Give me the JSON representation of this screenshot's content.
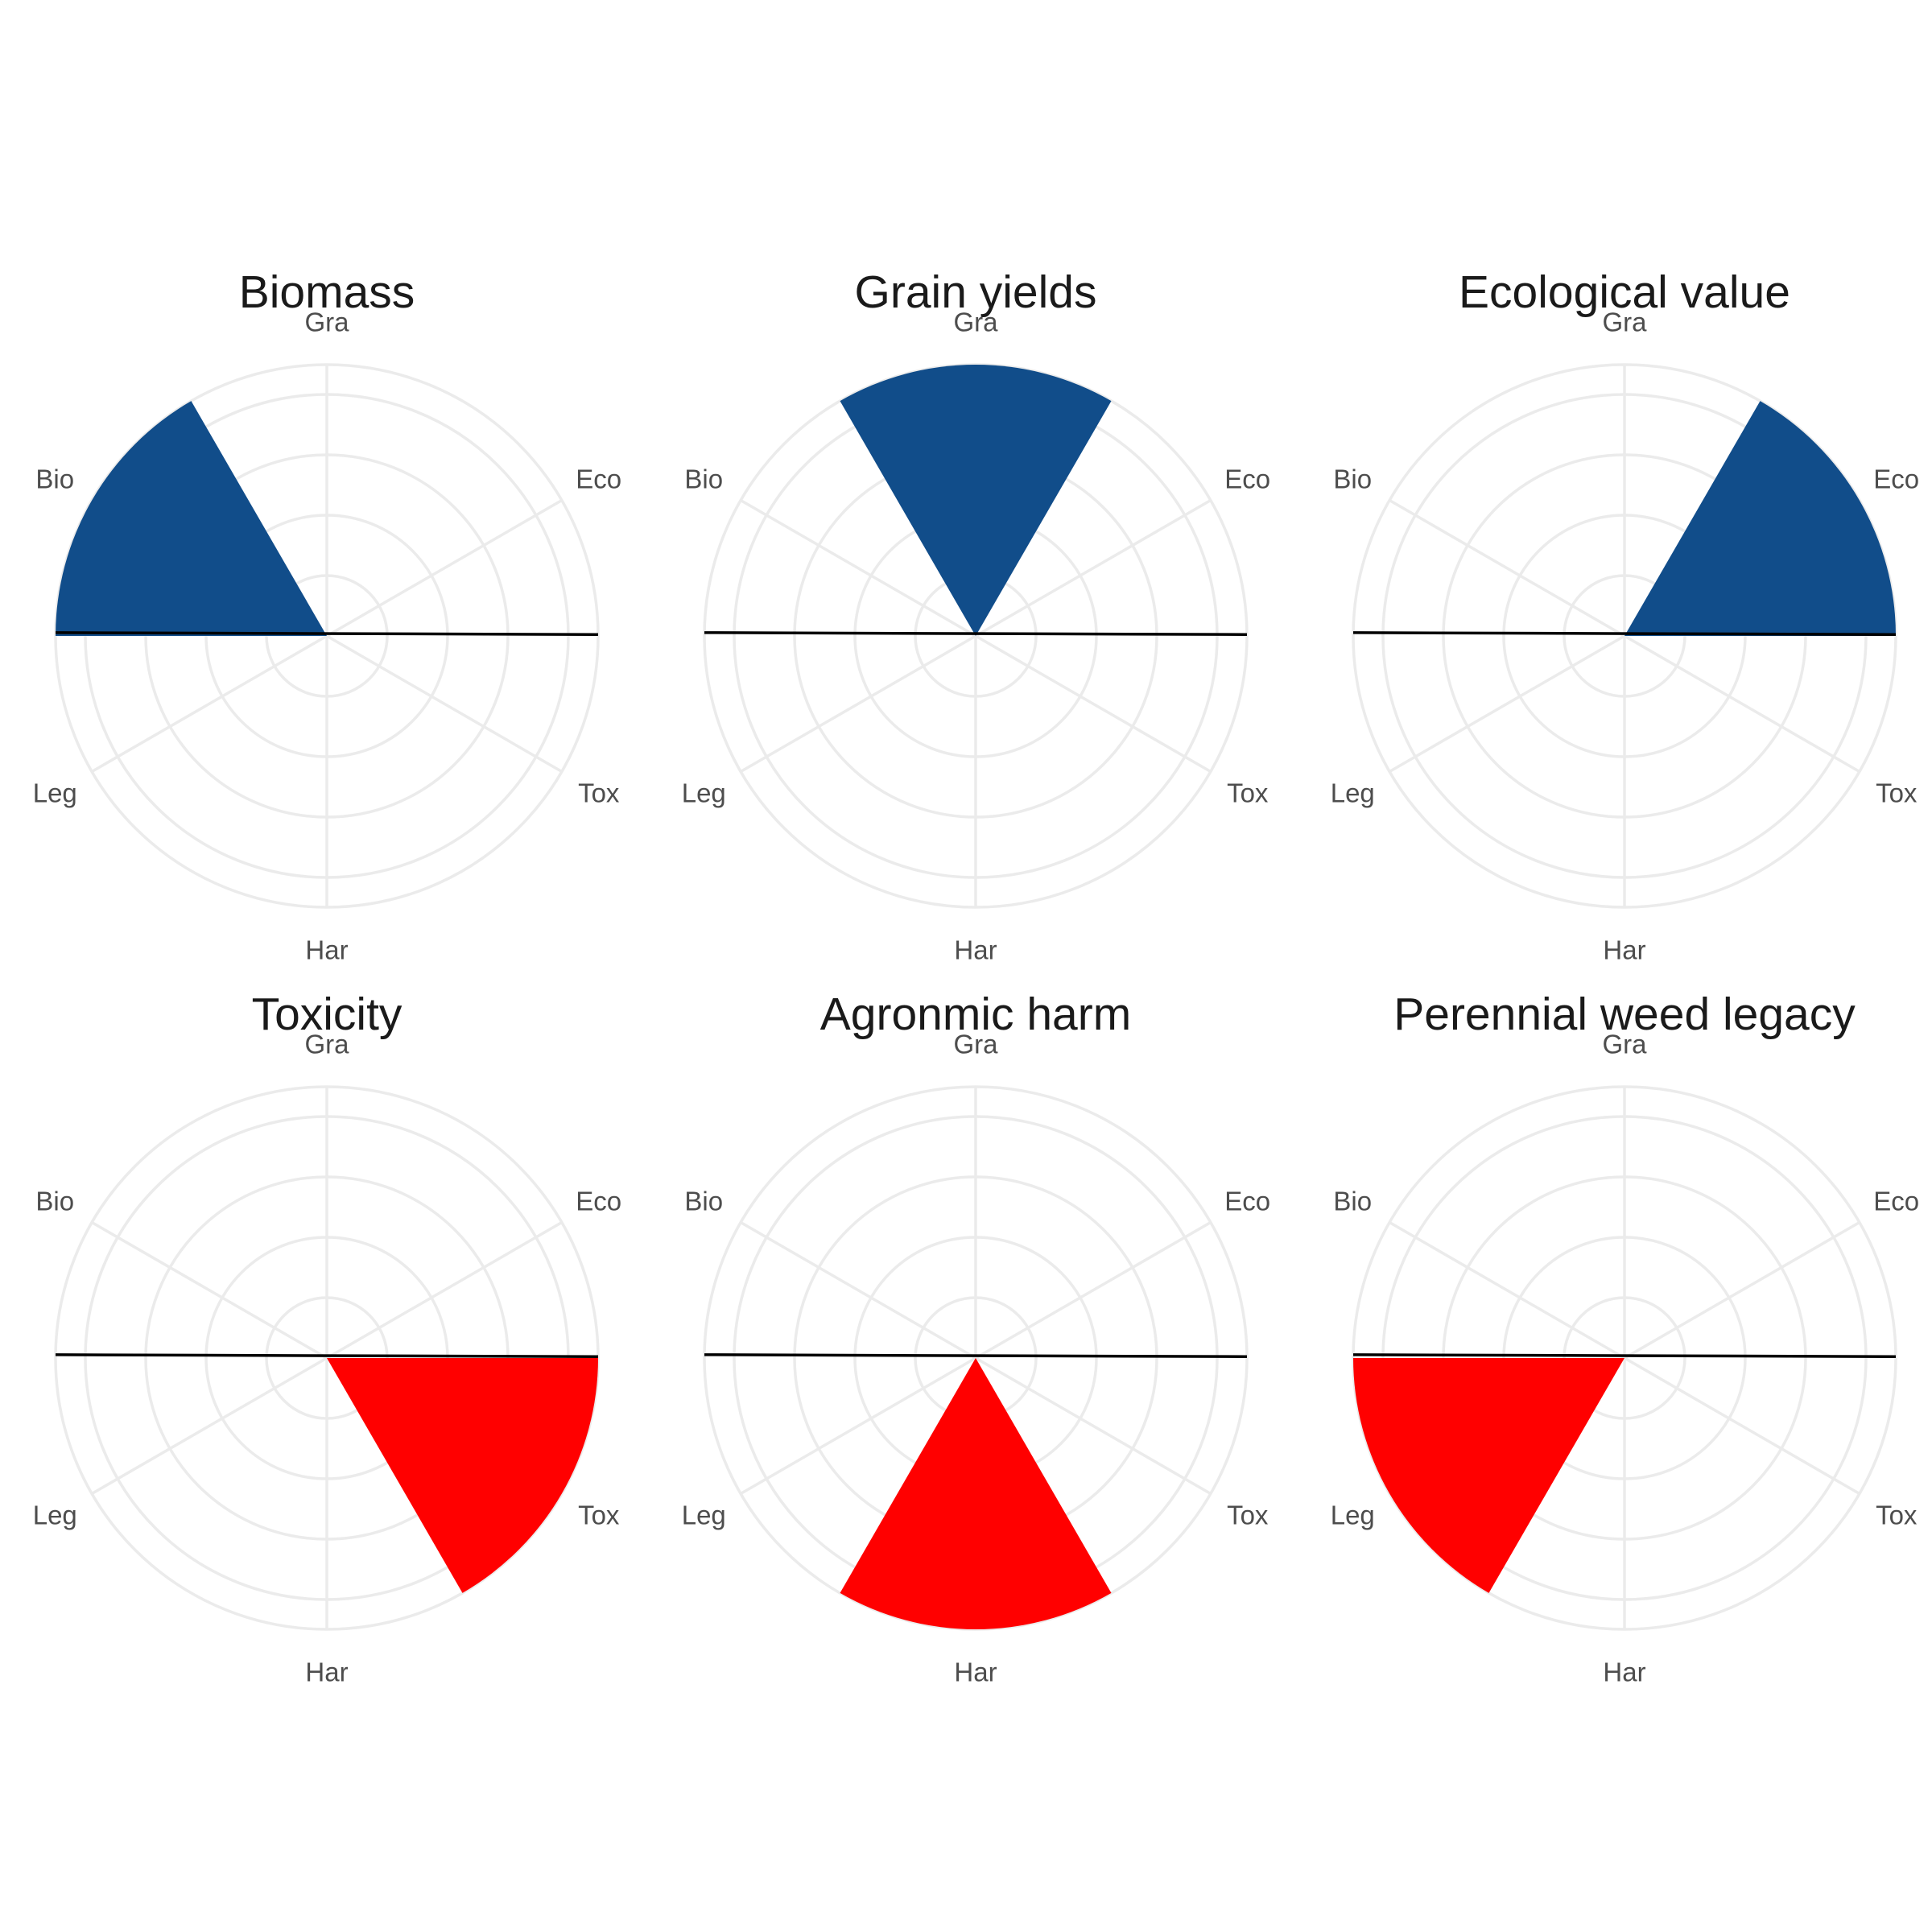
{
  "chart_data": [
    {
      "type": "polar-bar",
      "title": "Biomass",
      "categories": [
        "Gra",
        "Eco",
        "Tox",
        "Har",
        "Leg",
        "Bio"
      ],
      "values": [
        0,
        0,
        0,
        0,
        0,
        1
      ],
      "rlim": [
        -0.25,
        1
      ],
      "color": "#114d8a"
    },
    {
      "type": "polar-bar",
      "title": "Grain yields",
      "categories": [
        "Gra",
        "Eco",
        "Tox",
        "Har",
        "Leg",
        "Bio"
      ],
      "values": [
        1,
        0,
        0,
        0,
        0,
        0
      ],
      "rlim": [
        -0.25,
        1
      ],
      "color": "#114d8a"
    },
    {
      "type": "polar-bar",
      "title": "Ecological value",
      "categories": [
        "Gra",
        "Eco",
        "Tox",
        "Har",
        "Leg",
        "Bio"
      ],
      "values": [
        0,
        1,
        0,
        0,
        0,
        0
      ],
      "rlim": [
        -0.25,
        1
      ],
      "color": "#114d8a"
    },
    {
      "type": "polar-bar",
      "title": "Toxicity",
      "categories": [
        "Gra",
        "Eco",
        "Tox",
        "Har",
        "Leg",
        "Bio"
      ],
      "values": [
        0,
        0,
        1,
        0,
        0,
        0
      ],
      "rlim": [
        -0.25,
        1
      ],
      "color": "#ff0000"
    },
    {
      "type": "polar-bar",
      "title": "Agronmic harm",
      "categories": [
        "Gra",
        "Eco",
        "Tox",
        "Har",
        "Leg",
        "Bio"
      ],
      "values": [
        0,
        0,
        0,
        1,
        0,
        0
      ],
      "rlim": [
        -0.25,
        1
      ],
      "color": "#ff0000"
    },
    {
      "type": "polar-bar",
      "title": "Perennial weed legacy",
      "categories": [
        "Gra",
        "Eco",
        "Tox",
        "Har",
        "Leg",
        "Bio"
      ],
      "values": [
        0,
        0,
        0,
        0,
        1,
        0
      ],
      "rlim": [
        -0.25,
        1
      ],
      "color": "#ff0000"
    }
  ]
}
